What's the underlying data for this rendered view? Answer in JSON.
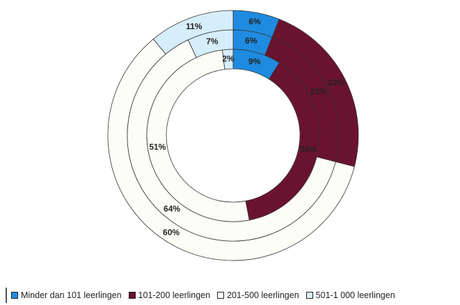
{
  "chart_data": {
    "type": "donut",
    "categories": [
      "Minder dan 101 leerlingen",
      "101-200 leerlingen",
      "201-500 leerlingen",
      "501-1 000 leerlingen"
    ],
    "colors": [
      "#1e8be0",
      "#6a1330",
      "#fdfdf7",
      "#d6edfa"
    ],
    "series": [
      {
        "values": [
          6,
          23,
          60,
          11
        ],
        "value_labels": [
          "6%",
          "23%",
          "60%",
          "11%"
        ]
      },
      {
        "values": [
          6,
          23,
          64,
          7
        ],
        "value_labels": [
          "6%",
          "23%",
          "64%",
          "7%"
        ]
      },
      {
        "values": [
          9,
          38,
          51,
          2
        ],
        "value_labels": [
          "9%",
          "38%",
          "51%",
          "2%"
        ]
      }
    ]
  }
}
